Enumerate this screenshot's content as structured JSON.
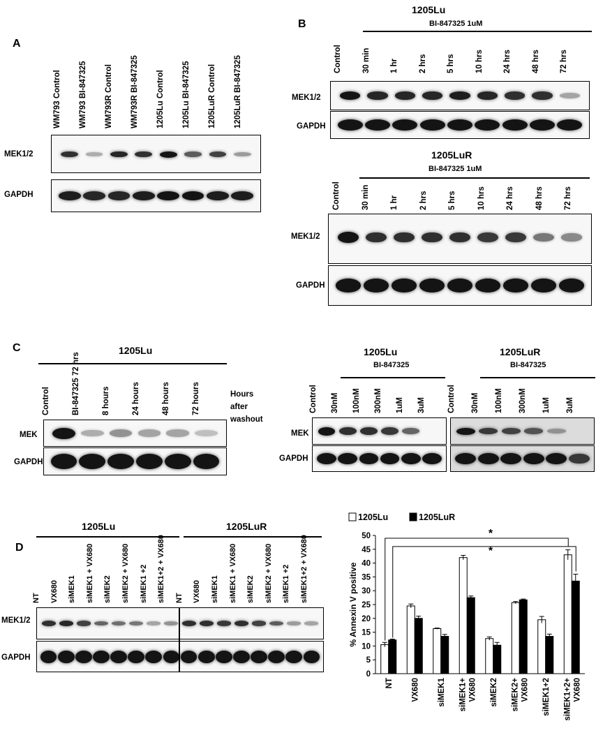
{
  "figure": {
    "panels": {
      "A": {
        "letter": "A",
        "lanes": [
          "WM793 Control",
          "WM793 BI-847325",
          "WM793R Control",
          "WM793R BI-847325",
          "1205Lu Control",
          "1205Lu BI-847325",
          "1205LuR Control",
          "1205LuR BI-847325"
        ],
        "rows": [
          "MEK1/2",
          "GAPDH"
        ],
        "mek_intensity": [
          0.85,
          0.15,
          0.9,
          0.85,
          1.0,
          0.6,
          0.75,
          0.25
        ],
        "gapdh_intensity": [
          0.95,
          0.9,
          0.9,
          0.95,
          1.0,
          1.0,
          0.95,
          0.95
        ]
      },
      "B": {
        "letter": "B",
        "top": {
          "cell_line": "1205Lu",
          "treatment": "BI-847325 1uM",
          "lanes": [
            "Control",
            "30 min",
            "1 hr",
            "2 hrs",
            "5 hrs",
            "10 hrs",
            "24 hrs",
            "48 hrs",
            "72 hrs"
          ],
          "rows": [
            "MEK1/2",
            "GAPDH"
          ],
          "mek_intensity": [
            1.0,
            0.9,
            0.9,
            0.9,
            0.95,
            0.9,
            0.85,
            0.85,
            0.2
          ],
          "gapdh_intensity": [
            1,
            1,
            1,
            1,
            1,
            1,
            1,
            1,
            1
          ]
        },
        "bottom": {
          "cell_line": "1205LuR",
          "treatment": "BI-847325 1uM",
          "lanes": [
            "Control",
            "30 min",
            "1 hr",
            "2 hrs",
            "5 hrs",
            "10 hrs",
            "24 hrs",
            "48 hrs",
            "72 hrs"
          ],
          "rows": [
            "MEK1/2",
            "GAPDH"
          ],
          "mek_intensity": [
            1.0,
            0.85,
            0.85,
            0.85,
            0.85,
            0.8,
            0.8,
            0.45,
            0.35
          ],
          "gapdh_intensity": [
            1,
            1,
            1,
            1,
            1,
            1,
            1,
            1,
            1
          ]
        }
      },
      "C": {
        "letter": "C",
        "washout": {
          "cell_line": "1205Lu",
          "lanes": [
            "Control",
            "BI-847325 72 hrs",
            "8 hours",
            "24 hours",
            "48 hours",
            "72 hours"
          ],
          "side_label": [
            "Hours",
            "after",
            "washout"
          ],
          "rows": [
            "MEK",
            "GAPDH"
          ],
          "mek_intensity": [
            1.0,
            0.15,
            0.3,
            0.2,
            0.2,
            0.05
          ],
          "gapdh_intensity": [
            1,
            1,
            1,
            1,
            1,
            1
          ]
        },
        "dose_lu": {
          "cell_line": "1205Lu",
          "treatment": "BI-847325",
          "lanes": [
            "Control",
            "30nM",
            "100nM",
            "300nM",
            "1uM",
            "3uM"
          ],
          "rows": [
            "MEK",
            "GAPDH"
          ],
          "mek_intensity": [
            1.0,
            0.85,
            0.85,
            0.8,
            0.55,
            0.0
          ],
          "gapdh_intensity": [
            1,
            1,
            1,
            1,
            1,
            1
          ]
        },
        "dose_lur": {
          "cell_line": "1205LuR",
          "treatment": "BI-847325",
          "lanes": [
            "Control",
            "30nM",
            "100nM",
            "300nM",
            "1uM",
            "3uM"
          ],
          "mek_intensity": [
            1.0,
            0.8,
            0.75,
            0.65,
            0.3,
            0.0
          ],
          "gapdh_intensity": [
            1,
            1,
            1,
            1,
            1,
            0.8
          ]
        }
      },
      "D": {
        "letter": "D",
        "blot": {
          "cell_lines": [
            "1205Lu",
            "1205LuR"
          ],
          "lanes": [
            "NT",
            "VX680",
            "siMEK1",
            "siMEK1 + VX680",
            "siMEK2",
            "siMEK2 + VX680",
            "siMEK1 +2",
            "siMEK1+2 + VX680"
          ],
          "rows": [
            "MEK1/2",
            "GAPDH"
          ],
          "mek_intensity_lu": [
            0.85,
            0.9,
            0.75,
            0.55,
            0.5,
            0.45,
            0.2,
            0.3
          ],
          "mek_intensity_lur": [
            0.85,
            0.85,
            0.8,
            0.85,
            0.75,
            0.6,
            0.25,
            0.2
          ],
          "gapdh_intensity": [
            1,
            1,
            1,
            1,
            1,
            1,
            1,
            1
          ]
        },
        "chart_data": {
          "type": "bar",
          "categories": [
            "NT",
            "VX680",
            "siMEK1",
            "siMEK1+ VX680",
            "siMEK2",
            "siMEK2+ VX680",
            "siMEK1+2",
            "siMEK1+2+ VX680"
          ],
          "series": [
            {
              "name": "1205Lu",
              "values": [
                10.5,
                24.5,
                16.3,
                42,
                12.7,
                25.7,
                19.5,
                43
              ],
              "errors": [
                0.8,
                0.7,
                0.2,
                0.8,
                0.6,
                0.4,
                1.2,
                1.8
              ]
            },
            {
              "name": "1205LuR",
              "values": [
                12.2,
                20,
                13.5,
                27.5,
                10.3,
                26.7,
                13.5,
                33.5
              ],
              "errors": [
                0.3,
                0.8,
                0.7,
                0.6,
                1.0,
                0.3,
                0.8,
                2.5
              ]
            }
          ],
          "ylabel": "% Annexin V positive",
          "ylim": [
            0,
            50
          ],
          "yticks": [
            0,
            5,
            10,
            15,
            20,
            25,
            30,
            35,
            40,
            45,
            50
          ],
          "significance": [
            "*",
            "*"
          ],
          "series_colors": [
            "#ffffff",
            "#000000"
          ]
        }
      }
    }
  }
}
